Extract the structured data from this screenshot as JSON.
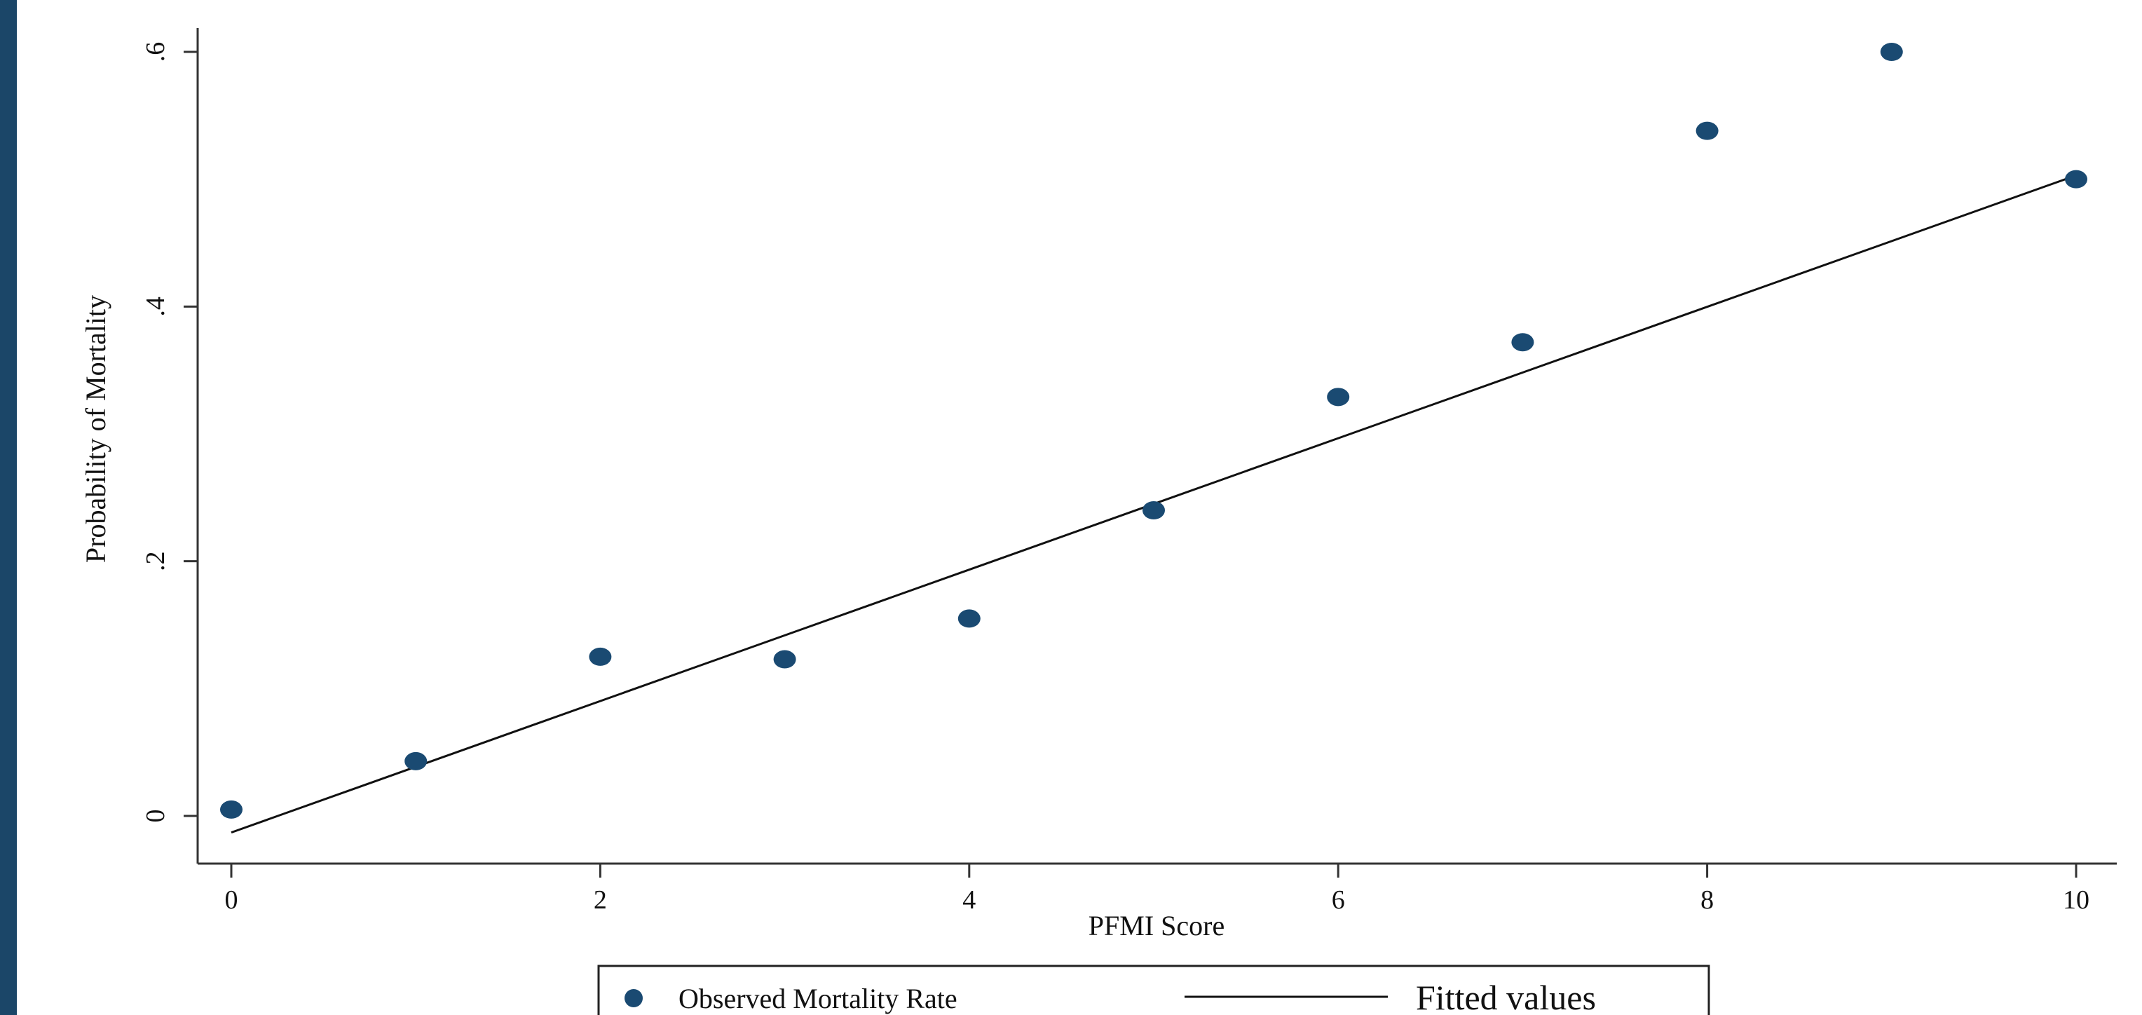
{
  "colors": {
    "frame": "#1b4668",
    "marker": "#1a4a72",
    "line": "#111111",
    "axis": "#333333"
  },
  "chart_data": {
    "type": "scatter",
    "title": "",
    "xlabel": "PFMI Score",
    "ylabel": "Probability of Mortality",
    "xlim": [
      0,
      10
    ],
    "ylim": [
      0,
      0.6
    ],
    "xticks": [
      0,
      2,
      4,
      6,
      8,
      10
    ],
    "xtick_labels": [
      "0",
      "2",
      "4",
      "6",
      "8",
      "10"
    ],
    "yticks": [
      0,
      0.2,
      0.4,
      0.6
    ],
    "ytick_labels": [
      "0",
      ".2",
      ".4",
      ".6"
    ],
    "grid": false,
    "legend_position": "bottom",
    "series": [
      {
        "name": "Observed Mortality Rate",
        "kind": "scatter",
        "x": [
          0,
          1,
          2,
          3,
          4,
          5,
          6,
          7,
          8,
          9,
          10
        ],
        "y": [
          0.005,
          0.043,
          0.125,
          0.123,
          0.155,
          0.24,
          0.329,
          0.372,
          0.538,
          0.6,
          0.5
        ]
      },
      {
        "name": "Fitted values",
        "kind": "line",
        "x": [
          0,
          10
        ],
        "y": [
          -0.013,
          0.503
        ]
      }
    ]
  }
}
